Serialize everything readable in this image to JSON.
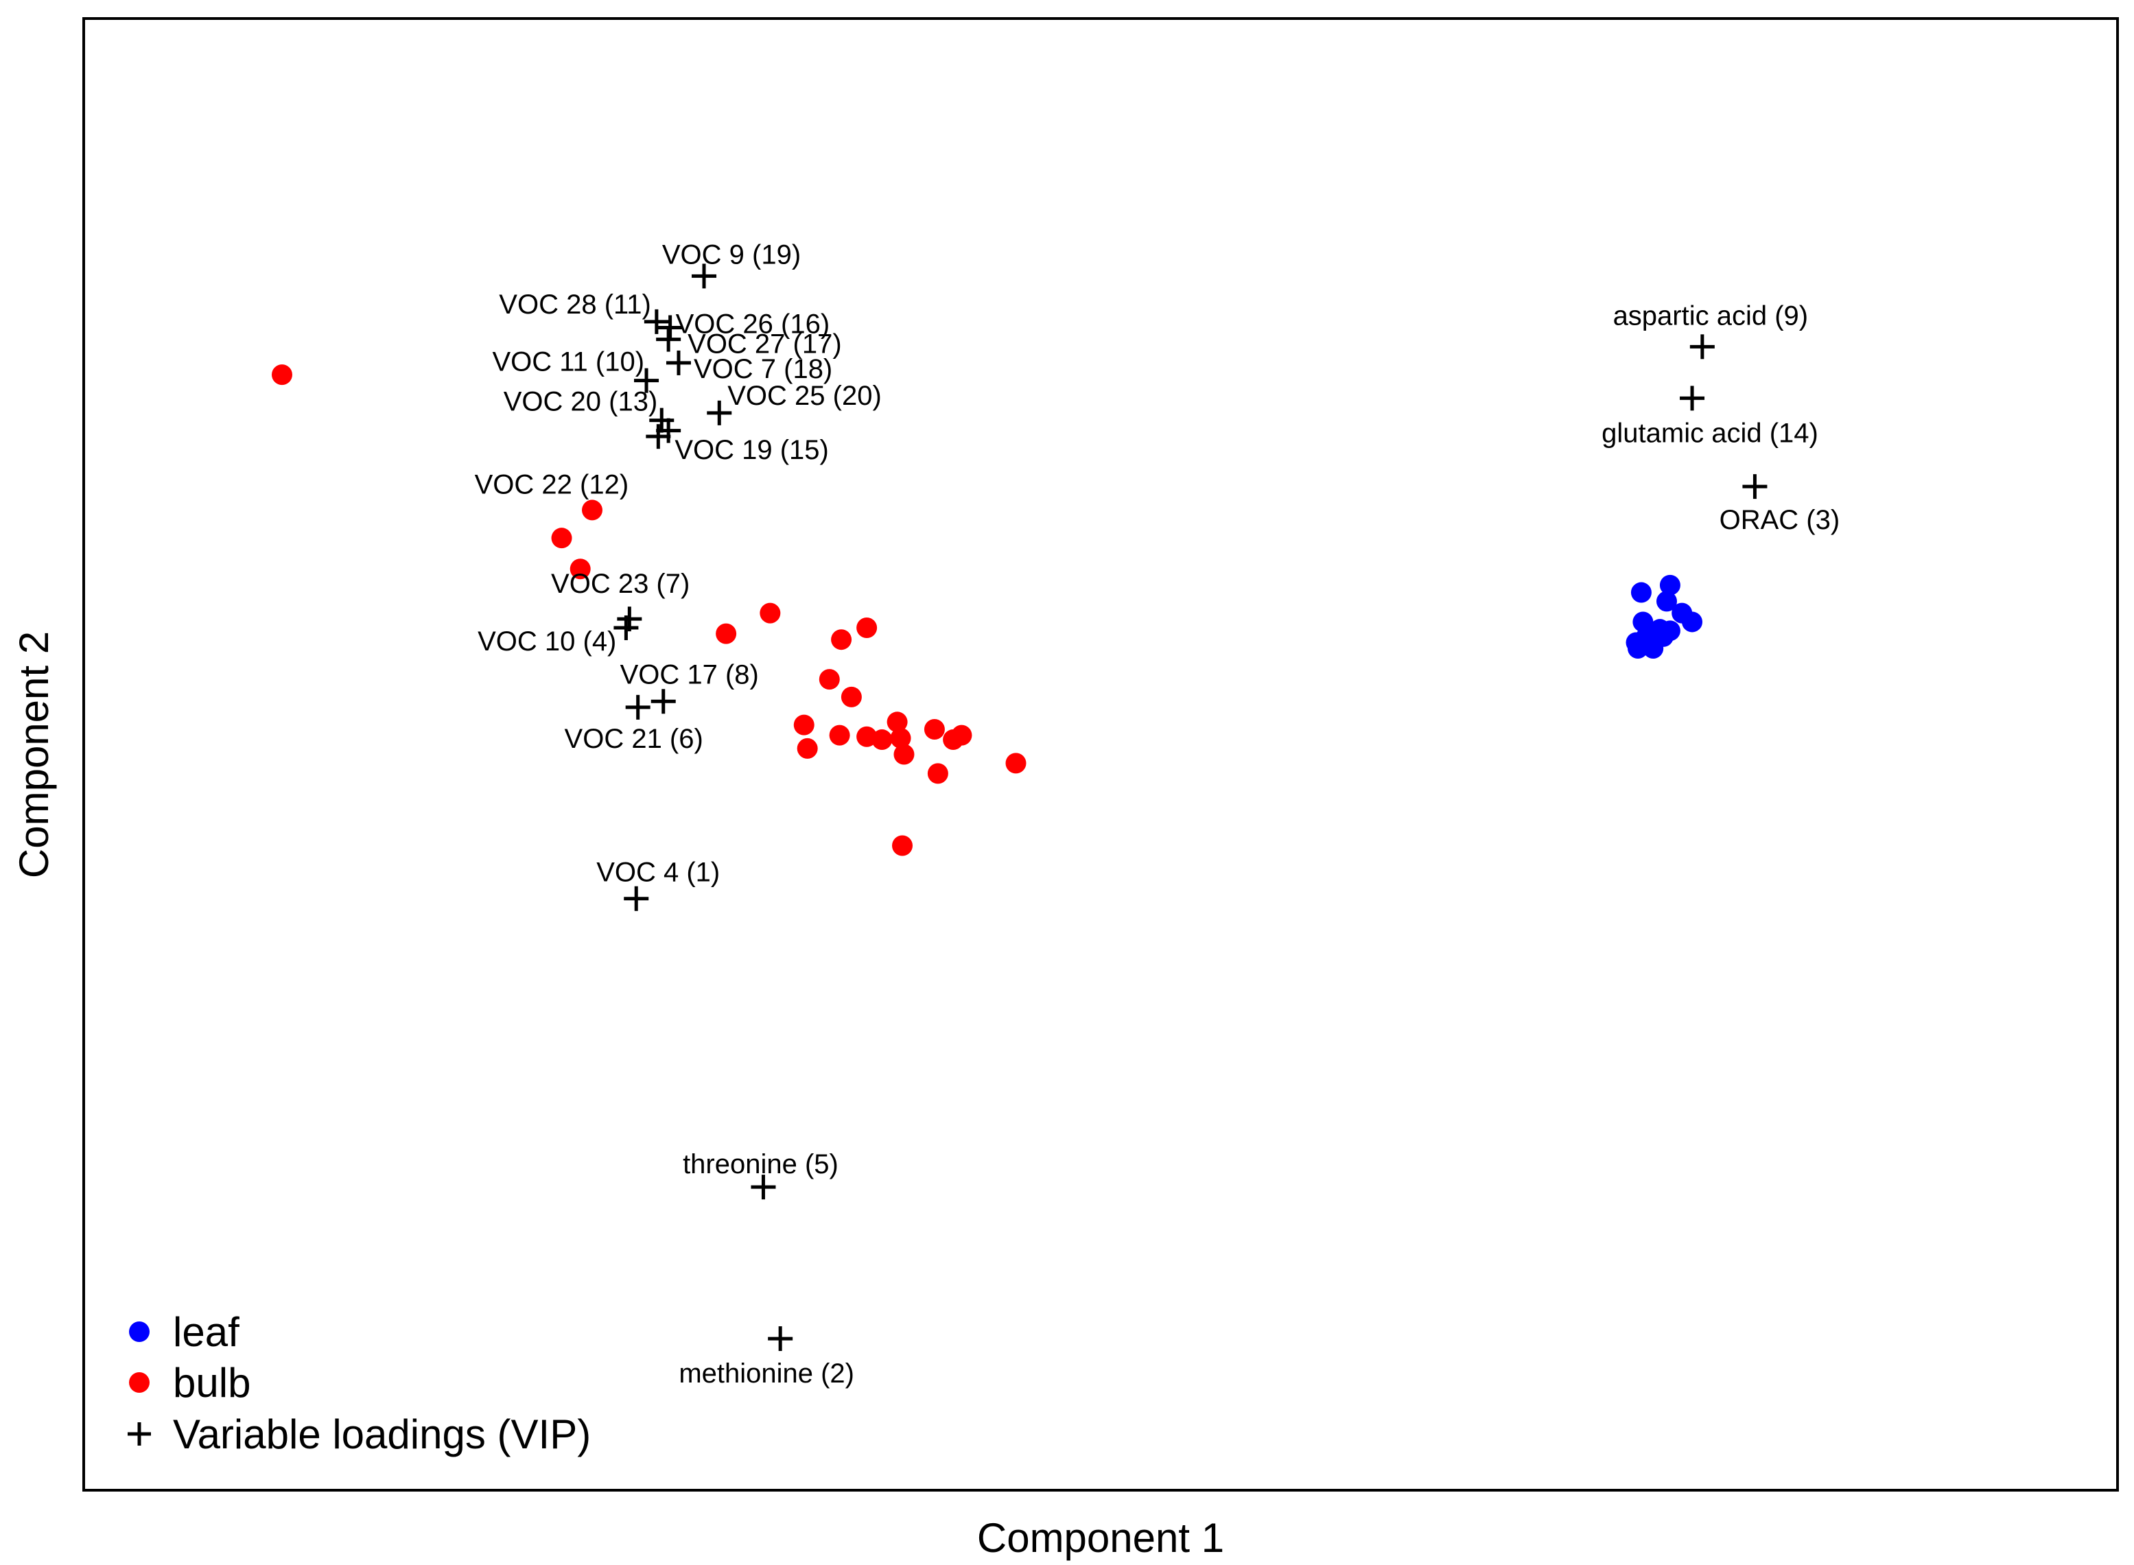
{
  "chart_data": {
    "type": "scatter",
    "title": "",
    "xlabel": "Component 1",
    "ylabel": "Component 2",
    "xlim": [
      -6,
      6
    ],
    "ylim": [
      -6,
      4
    ],
    "grid": false,
    "legend_position": "bottom-left",
    "legend": [
      {
        "name": "leaf",
        "marker": "dot",
        "color": "#0000ff"
      },
      {
        "name": "bulb",
        "marker": "dot",
        "color": "#ff0000"
      },
      {
        "name": "Variable loadings (VIP)",
        "marker": "plus",
        "color": "#000000"
      }
    ],
    "series": [
      {
        "name": "leaf",
        "color": "#0000ff",
        "points": [
          {
            "x": 3.19,
            "y": 0.1
          },
          {
            "x": 3.36,
            "y": 0.15
          },
          {
            "x": 3.34,
            "y": 0.04
          },
          {
            "x": 3.43,
            "y": -0.04
          },
          {
            "x": 3.49,
            "y": -0.1
          },
          {
            "x": 3.2,
            "y": -0.1
          },
          {
            "x": 3.3,
            "y": -0.15
          },
          {
            "x": 3.36,
            "y": -0.16
          },
          {
            "x": 3.26,
            "y": -0.2
          },
          {
            "x": 3.32,
            "y": -0.2
          },
          {
            "x": 3.22,
            "y": -0.2
          },
          {
            "x": 3.16,
            "y": -0.24
          },
          {
            "x": 3.17,
            "y": -0.28
          },
          {
            "x": 3.26,
            "y": -0.28
          },
          {
            "x": 3.21,
            "y": -0.24
          }
        ]
      },
      {
        "name": "bulb",
        "color": "#ff0000",
        "points": [
          {
            "x": -4.83,
            "y": 1.58
          },
          {
            "x": -3.0,
            "y": 0.66
          },
          {
            "x": -3.18,
            "y": 0.47
          },
          {
            "x": -3.07,
            "y": 0.26
          },
          {
            "x": -1.95,
            "y": -0.04
          },
          {
            "x": -2.21,
            "y": -0.18
          },
          {
            "x": -1.38,
            "y": -0.14
          },
          {
            "x": -1.53,
            "y": -0.22
          },
          {
            "x": -1.6,
            "y": -0.49
          },
          {
            "x": -1.47,
            "y": -0.61
          },
          {
            "x": -1.75,
            "y": -0.8
          },
          {
            "x": -1.54,
            "y": -0.87
          },
          {
            "x": -1.38,
            "y": -0.88
          },
          {
            "x": -1.29,
            "y": -0.9
          },
          {
            "x": -1.18,
            "y": -0.89
          },
          {
            "x": -1.2,
            "y": -0.78
          },
          {
            "x": -0.98,
            "y": -0.83
          },
          {
            "x": -0.87,
            "y": -0.9
          },
          {
            "x": -0.82,
            "y": -0.87
          },
          {
            "x": -1.73,
            "y": -0.96
          },
          {
            "x": -1.16,
            "y": -1.0
          },
          {
            "x": -0.96,
            "y": -1.13
          },
          {
            "x": -0.5,
            "y": -1.06
          },
          {
            "x": -1.17,
            "y": -1.62
          }
        ]
      },
      {
        "name": "Variable loadings (VIP)",
        "color": "#000000",
        "points": [
          {
            "x": -2.34,
            "y": 2.25,
            "label": "VOC 9 (19)"
          },
          {
            "x": -2.62,
            "y": 1.94,
            "label": "VOC 28 (11)"
          },
          {
            "x": -2.54,
            "y": 1.9,
            "label": "VOC 26 (16)"
          },
          {
            "x": -2.55,
            "y": 1.82,
            "label": "VOC 27 (17)"
          },
          {
            "x": -2.68,
            "y": 1.54,
            "label": "VOC 11 (10)"
          },
          {
            "x": -2.49,
            "y": 1.66,
            "label": "VOC 7 (18)"
          },
          {
            "x": -2.59,
            "y": 1.27,
            "label": "VOC 20 (13)"
          },
          {
            "x": -2.25,
            "y": 1.32,
            "label": "VOC 25 (20)"
          },
          {
            "x": -2.61,
            "y": 1.16,
            "label": "VOC 19 (15)"
          },
          {
            "x": -2.55,
            "y": 1.2,
            "label": "VOC 22 (12)"
          },
          {
            "x": -2.78,
            "y": -0.08,
            "label": "VOC 23 (7)"
          },
          {
            "x": -2.8,
            "y": -0.14,
            "label": "VOC 10 (4)"
          },
          {
            "x": -2.58,
            "y": -0.64,
            "label": "VOC 17 (8)"
          },
          {
            "x": -2.73,
            "y": -0.68,
            "label": "VOC 21 (6)"
          },
          {
            "x": -2.74,
            "y": -1.98,
            "label": "VOC 4 (1)"
          },
          {
            "x": -1.99,
            "y": -3.94,
            "label": "threonine (5)"
          },
          {
            "x": -1.89,
            "y": -4.97,
            "label": "methionine (2)"
          },
          {
            "x": 3.55,
            "y": 1.77,
            "label": "aspartic acid (9)"
          },
          {
            "x": 3.49,
            "y": 1.42,
            "label": "glutamic acid (14)"
          },
          {
            "x": 3.86,
            "y": 0.82,
            "label": "ORAC (3)"
          }
        ]
      }
    ]
  }
}
